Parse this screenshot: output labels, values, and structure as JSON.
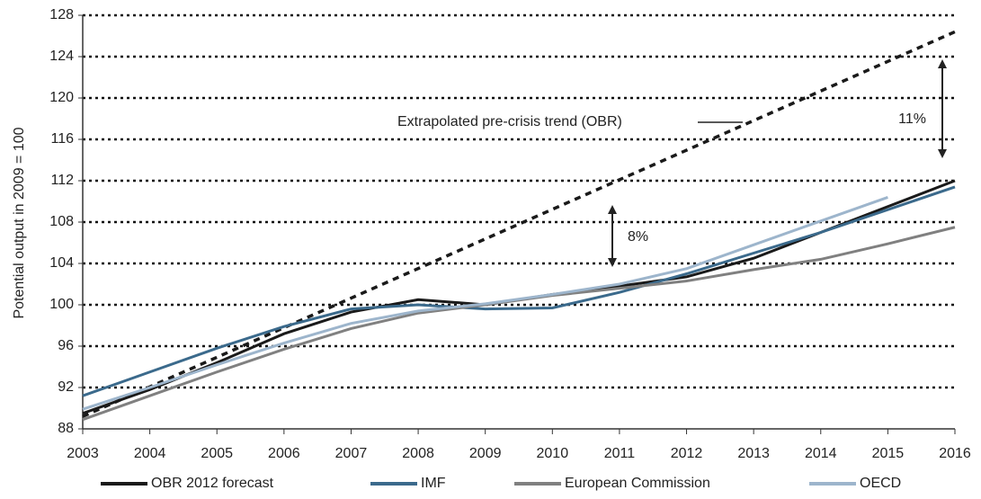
{
  "chart_data": {
    "type": "line",
    "y_label": "Potential output in 2009 = 100",
    "xlim": [
      2003,
      2016
    ],
    "xticks": [
      2003,
      2004,
      2005,
      2006,
      2007,
      2008,
      2009,
      2010,
      2011,
      2012,
      2013,
      2014,
      2015,
      2016
    ],
    "ylim": [
      88,
      128
    ],
    "yticks": [
      88,
      92,
      96,
      100,
      104,
      108,
      112,
      116,
      120,
      124,
      128
    ],
    "grid": true,
    "x": [
      2003,
      2004,
      2005,
      2006,
      2007,
      2008,
      2009,
      2010,
      2011,
      2012,
      2013,
      2014,
      2015,
      2016
    ],
    "series": [
      {
        "name": "OBR 2012 forecast",
        "color": "#1a1a1a",
        "values": [
          89.5,
          91.8,
          94.4,
          97.2,
          99.3,
          100.5,
          100.0,
          101.0,
          101.8,
          102.7,
          104.5,
          107.0,
          109.5,
          112.0
        ]
      },
      {
        "name": "IMF",
        "color": "#3b6a8c",
        "values": [
          91.2,
          93.5,
          95.8,
          97.9,
          99.6,
          100.0,
          99.6,
          99.7,
          101.2,
          103.0,
          105.0,
          107.0,
          109.2,
          111.4
        ]
      },
      {
        "name": "European Commission",
        "color": "#808080",
        "values": [
          88.9,
          91.2,
          93.5,
          95.7,
          97.7,
          99.2,
          100.0,
          100.9,
          101.6,
          102.3,
          103.4,
          104.4,
          105.9,
          107.5
        ]
      },
      {
        "name": "OECD",
        "color": "#9db5cc",
        "values": [
          89.9,
          92.0,
          94.2,
          96.3,
          98.2,
          99.4,
          100.1,
          101.0,
          102.0,
          103.5,
          105.8,
          108.1,
          110.4,
          null
        ]
      }
    ],
    "trend": {
      "label": "Extrapolated pre-crisis trend (OBR)",
      "color": "#1a1a1a",
      "x": [
        2003,
        2016
      ],
      "values": [
        89.2,
        126.4
      ]
    },
    "annotations": [
      "8%",
      "11%"
    ]
  }
}
